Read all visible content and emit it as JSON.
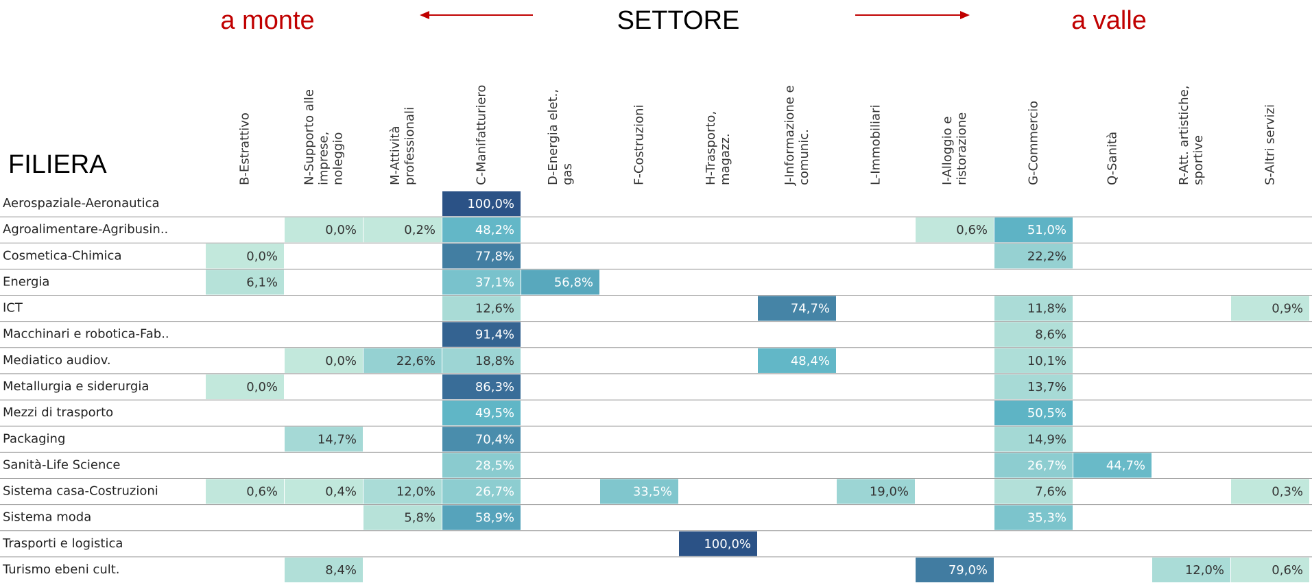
{
  "chart_data": {
    "type": "heatmap",
    "header": {
      "left": "a monte",
      "center": "SETTORE",
      "right": "a valle"
    },
    "row_title": "FILIERA",
    "columns": [
      [
        "B-Estrattivo"
      ],
      [
        "N-Supporto alle",
        "imprese,",
        "noleggio"
      ],
      [
        "M-Attività",
        "professionali"
      ],
      [
        "C-Manifatturiero"
      ],
      [
        "D-Energia elet.,",
        "gas"
      ],
      [
        "F-Costruzioni"
      ],
      [
        "H-Trasporto,",
        "magazz."
      ],
      [
        "J-Informazione e",
        "comunic."
      ],
      [
        "L-Immobiliari"
      ],
      [
        "I-Alloggio e",
        "ristorazione"
      ],
      [
        "G-Commercio"
      ],
      [
        "Q-Sanità"
      ],
      [
        "R-Att. artistiche,",
        "sportive"
      ],
      [
        "S-Altri servizi"
      ]
    ],
    "categories": [
      "Aerospaziale-Aeronautica",
      "Agroalimentare-Agribusin..",
      "Cosmetica-Chimica",
      "Energia",
      "ICT",
      "Macchinari e robotica-Fab..",
      "Mediatico audiov.",
      "Metallurgia e siderurgia",
      "Mezzi di trasporto",
      "Packaging",
      "Sanità-Life Science",
      "Sistema casa-Costruzioni",
      "Sistema moda",
      "Trasporti e logistica",
      "Turismo ebeni cult."
    ],
    "values": [
      [
        null,
        null,
        null,
        100.0,
        null,
        null,
        null,
        null,
        null,
        null,
        null,
        null,
        null,
        null
      ],
      [
        null,
        0.0,
        0.2,
        48.2,
        null,
        null,
        null,
        null,
        null,
        0.6,
        51.0,
        null,
        null,
        null
      ],
      [
        0.0,
        null,
        null,
        77.8,
        null,
        null,
        null,
        null,
        null,
        null,
        22.2,
        null,
        null,
        null
      ],
      [
        6.1,
        null,
        null,
        37.1,
        56.8,
        null,
        null,
        null,
        null,
        null,
        null,
        null,
        null,
        null
      ],
      [
        null,
        null,
        null,
        12.6,
        null,
        null,
        null,
        74.7,
        null,
        null,
        11.8,
        null,
        null,
        0.9
      ],
      [
        null,
        null,
        null,
        91.4,
        null,
        null,
        null,
        null,
        null,
        null,
        8.6,
        null,
        null,
        null
      ],
      [
        null,
        0.0,
        22.6,
        18.8,
        null,
        null,
        null,
        48.4,
        null,
        null,
        10.1,
        null,
        null,
        null
      ],
      [
        0.0,
        null,
        null,
        86.3,
        null,
        null,
        null,
        null,
        null,
        null,
        13.7,
        null,
        null,
        null
      ],
      [
        null,
        null,
        null,
        49.5,
        null,
        null,
        null,
        null,
        null,
        null,
        50.5,
        null,
        null,
        null
      ],
      [
        null,
        14.7,
        null,
        70.4,
        null,
        null,
        null,
        null,
        null,
        null,
        14.9,
        null,
        null,
        null
      ],
      [
        null,
        null,
        null,
        28.5,
        null,
        null,
        null,
        null,
        null,
        null,
        26.7,
        44.7,
        null,
        null
      ],
      [
        0.6,
        0.4,
        12.0,
        26.7,
        null,
        33.5,
        null,
        null,
        19.0,
        null,
        7.6,
        null,
        null,
        0.3
      ],
      [
        null,
        null,
        5.8,
        58.9,
        null,
        null,
        null,
        null,
        null,
        null,
        35.3,
        null,
        null,
        null
      ],
      [
        null,
        null,
        null,
        null,
        null,
        null,
        100.0,
        null,
        null,
        null,
        null,
        null,
        null,
        null
      ],
      [
        null,
        8.4,
        null,
        null,
        null,
        null,
        null,
        null,
        null,
        79.0,
        null,
        null,
        12.0,
        0.6
      ]
    ],
    "value_labels": [
      [
        null,
        null,
        null,
        "100,0%",
        null,
        null,
        null,
        null,
        null,
        null,
        null,
        null,
        null,
        null
      ],
      [
        null,
        "0,0%",
        "0,2%",
        "48,2%",
        null,
        null,
        null,
        null,
        null,
        "0,6%",
        "51,0%",
        null,
        null,
        null
      ],
      [
        "0,0%",
        null,
        null,
        "77,8%",
        null,
        null,
        null,
        null,
        null,
        null,
        "22,2%",
        null,
        null,
        null
      ],
      [
        "6,1%",
        null,
        null,
        "37,1%",
        "56,8%",
        null,
        null,
        null,
        null,
        null,
        null,
        null,
        null,
        null
      ],
      [
        null,
        null,
        null,
        "12,6%",
        null,
        null,
        null,
        "74,7%",
        null,
        null,
        "11,8%",
        null,
        null,
        "0,9%"
      ],
      [
        null,
        null,
        null,
        "91,4%",
        null,
        null,
        null,
        null,
        null,
        null,
        "8,6%",
        null,
        null,
        null
      ],
      [
        null,
        "0,0%",
        "22,6%",
        "18,8%",
        null,
        null,
        null,
        "48,4%",
        null,
        null,
        "10,1%",
        null,
        null,
        null
      ],
      [
        "0,0%",
        null,
        null,
        "86,3%",
        null,
        null,
        null,
        null,
        null,
        null,
        "13,7%",
        null,
        null,
        null
      ],
      [
        null,
        null,
        null,
        "49,5%",
        null,
        null,
        null,
        null,
        null,
        null,
        "50,5%",
        null,
        null,
        null
      ],
      [
        null,
        "14,7%",
        null,
        "70,4%",
        null,
        null,
        null,
        null,
        null,
        null,
        "14,9%",
        null,
        null,
        null
      ],
      [
        null,
        null,
        null,
        "28,5%",
        null,
        null,
        null,
        null,
        null,
        null,
        "26,7%",
        "44,7%",
        null,
        null
      ],
      [
        "0,6%",
        "0,4%",
        "12,0%",
        "26,7%",
        null,
        "33,5%",
        null,
        null,
        "19,0%",
        null,
        "7,6%",
        null,
        null,
        "0,3%"
      ],
      [
        null,
        null,
        "5,8%",
        "58,9%",
        null,
        null,
        null,
        null,
        null,
        null,
        "35,3%",
        null,
        null,
        null
      ],
      [
        null,
        null,
        null,
        null,
        null,
        null,
        "100,0%",
        null,
        null,
        null,
        null,
        null,
        null,
        null
      ],
      [
        null,
        "8,4%",
        null,
        null,
        null,
        null,
        null,
        null,
        null,
        "79,0%",
        null,
        null,
        "12,0%",
        "0,6%"
      ]
    ],
    "colorscale": [
      "#c2e8dc",
      "#5fb5c6",
      "#2b5286"
    ],
    "vlim": [
      0,
      100
    ]
  }
}
